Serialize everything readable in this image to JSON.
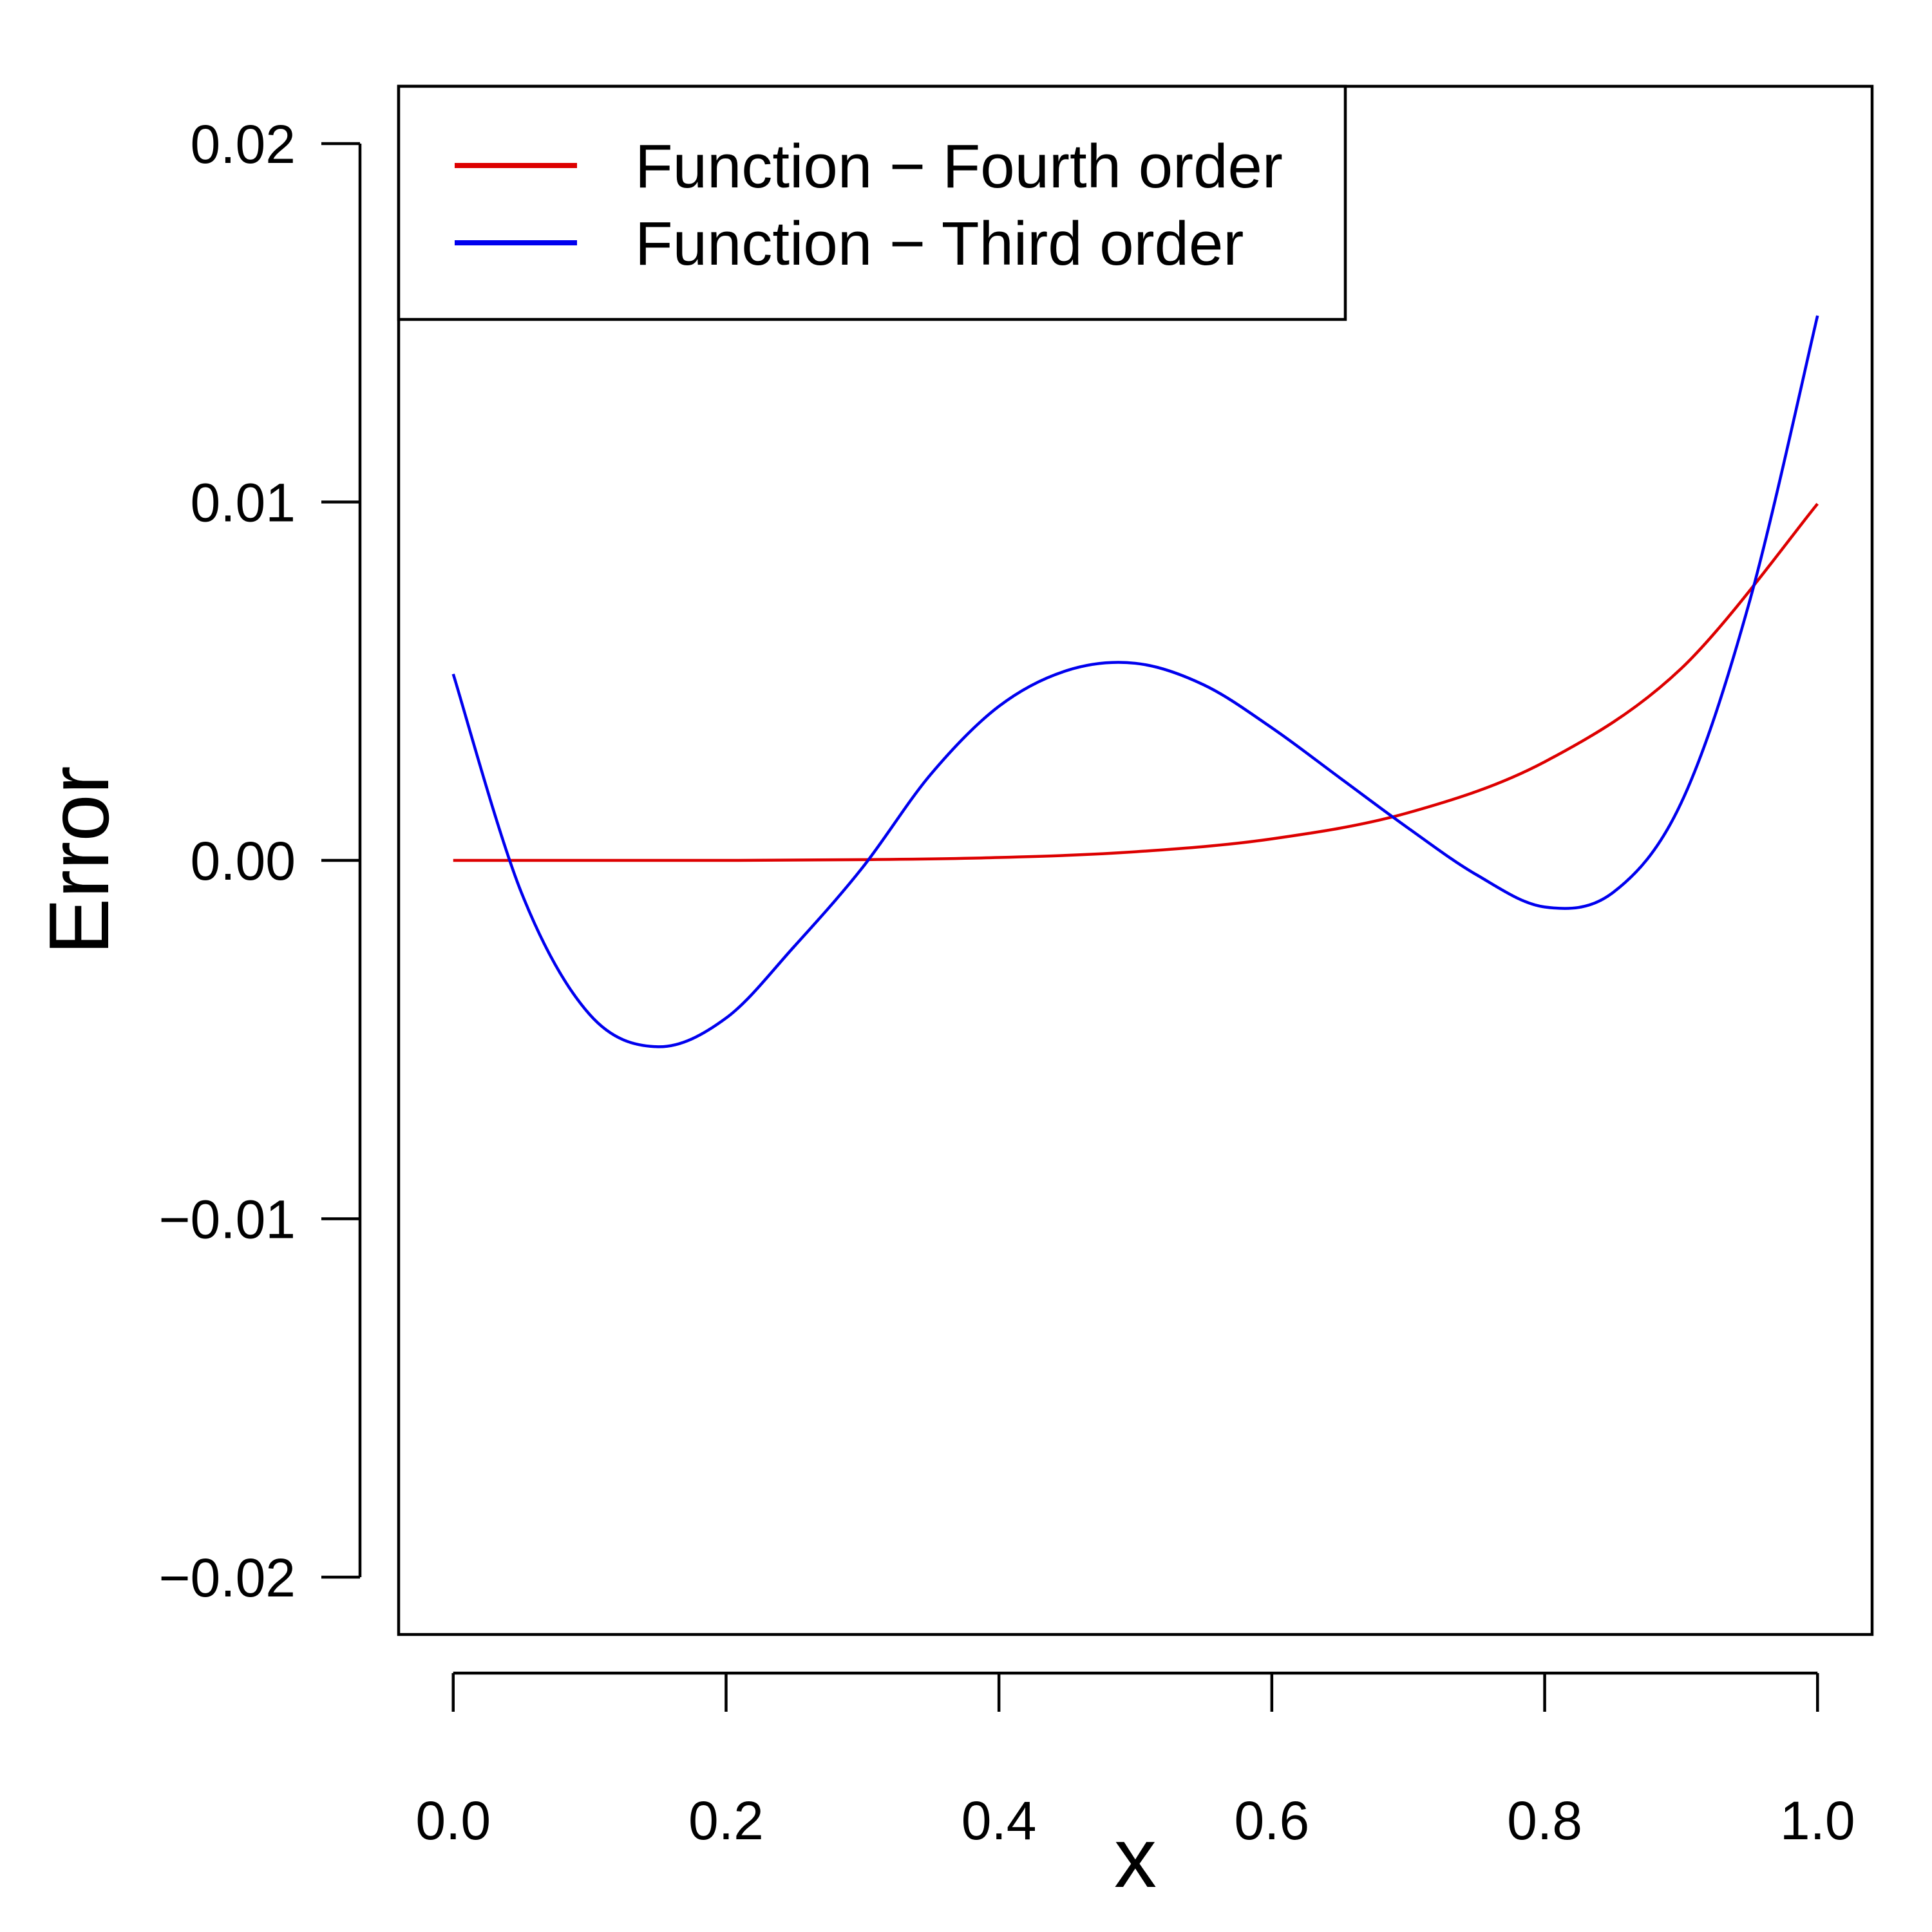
{
  "chart_data": {
    "type": "line",
    "title": "",
    "xlabel": "x",
    "ylabel": "Error",
    "xlim": [
      -0.04,
      1.04
    ],
    "ylim": [
      -0.0216,
      0.0216
    ],
    "xticks": [
      0.0,
      0.2,
      0.4,
      0.6,
      0.8,
      1.0
    ],
    "xtick_labels": [
      "0.0",
      "0.2",
      "0.4",
      "0.6",
      "0.8",
      "1.0"
    ],
    "yticks": [
      -0.02,
      -0.01,
      0.0,
      0.01,
      0.02
    ],
    "ytick_labels": [
      "−0.02",
      "−0.01",
      "0.00",
      "0.01",
      "0.02"
    ],
    "grid": false,
    "legend_position": "top-left",
    "series": [
      {
        "name": "Function − Fourth order",
        "color": "#dd0000",
        "x": [
          0.0,
          0.1,
          0.2,
          0.3,
          0.4,
          0.5,
          0.6,
          0.7,
          0.8,
          0.9,
          1.0
        ],
        "y": [
          0.0,
          0.0,
          0.0,
          2e-05,
          8e-05,
          0.00024,
          0.0006,
          0.00133,
          0.00275,
          0.00535,
          0.00995
        ]
      },
      {
        "name": "Function − Third order",
        "color": "#0000ee",
        "x": [
          0.0,
          0.05,
          0.1,
          0.15,
          0.2,
          0.25,
          0.3,
          0.35,
          0.4,
          0.45,
          0.5,
          0.55,
          0.6,
          0.65,
          0.7,
          0.75,
          0.8,
          0.85,
          0.9,
          0.95,
          1.0
        ],
        "y": [
          0.0052,
          -0.0009,
          -0.0043,
          -0.0052,
          -0.0044,
          -0.0024,
          -0.0002,
          0.0024,
          0.0043,
          0.0053,
          0.0055,
          0.0049,
          0.0037,
          0.0023,
          0.0009,
          -0.0004,
          -0.0013,
          -0.0009,
          0.0016,
          0.0072,
          0.0152
        ]
      }
    ]
  }
}
